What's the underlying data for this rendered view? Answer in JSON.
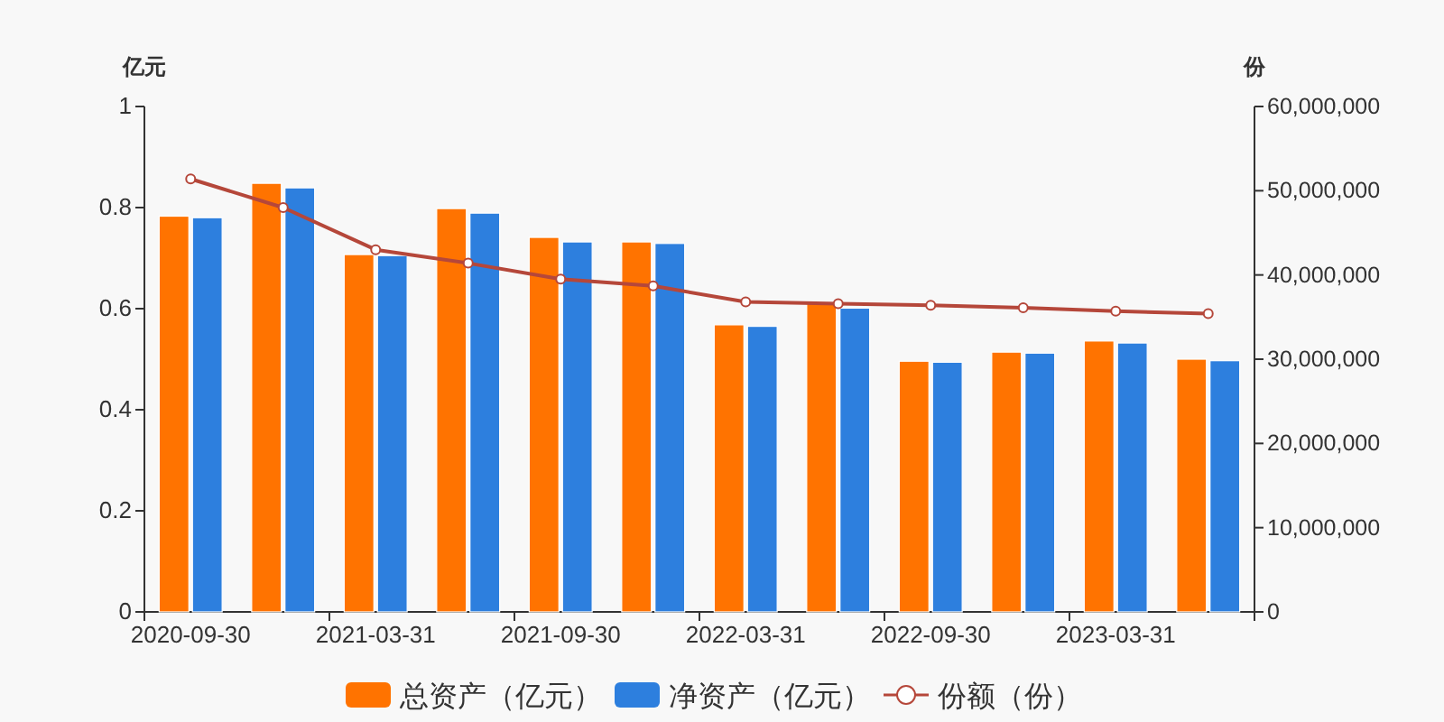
{
  "chart_data": {
    "type": "bar",
    "ylabel": "亿元",
    "y2label": "份",
    "categories": [
      "2020-09-30",
      null,
      "2021-03-31",
      null,
      "2021-09-30",
      null,
      "2022-03-31",
      null,
      "2022-09-30",
      null,
      "2023-03-31",
      null
    ],
    "series": [
      {
        "name": "总资产（亿元）",
        "color": "#ff7300",
        "values": [
          0.783,
          0.848,
          0.707,
          0.798,
          0.741,
          0.732,
          0.568,
          0.613,
          0.496,
          0.514,
          0.536,
          0.5
        ]
      },
      {
        "name": "净资产（亿元）",
        "color": "#2d7fde",
        "values": [
          0.78,
          0.839,
          0.705,
          0.789,
          0.732,
          0.729,
          0.565,
          0.601,
          0.494,
          0.512,
          0.532,
          0.497
        ]
      },
      {
        "name": "份额（份）",
        "type": "line",
        "axis": "y2",
        "color": "#b5473a",
        "marker": "circle",
        "values": [
          51400000,
          48000000,
          43000000,
          41400000,
          39500000,
          38700000,
          36800000,
          36600000,
          36400000,
          36100000,
          35700000,
          35400000
        ]
      }
    ],
    "ylim": [
      0,
      1
    ],
    "yticks": [
      0,
      0.2,
      0.4,
      0.6,
      0.8,
      1
    ],
    "y2lim": [
      0,
      60000000
    ],
    "y2ticks": [
      0,
      {
        "value": 10000000,
        "label": "10,000,000"
      },
      {
        "value": 20000000,
        "label": "20,000,000"
      },
      {
        "value": 30000000,
        "label": "30,000,000"
      },
      {
        "value": 40000000,
        "label": "40,000,000"
      },
      {
        "value": 50000000,
        "label": "50,000,000"
      },
      {
        "value": 60000000,
        "label": "60,000,000"
      }
    ],
    "legend": "bottom"
  }
}
